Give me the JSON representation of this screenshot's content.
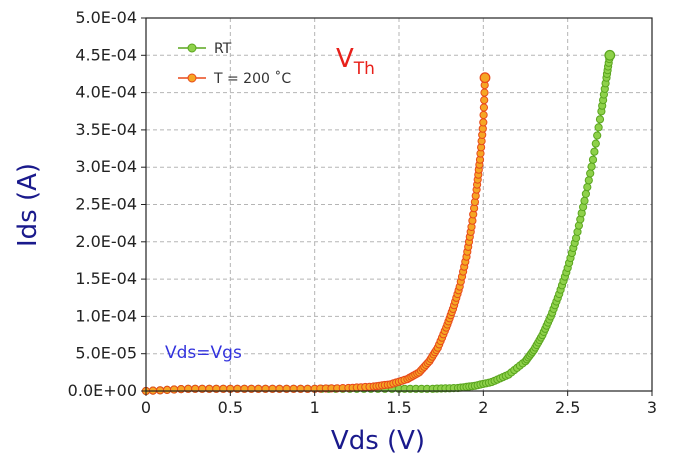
{
  "chart_data": {
    "type": "line",
    "title": "",
    "xlabel": "Vds (V)",
    "ylabel": "Ids (A)",
    "xlim": [
      0,
      3
    ],
    "ylim": [
      0,
      0.0005
    ],
    "grid": true,
    "x_ticks": [
      "0",
      "0.5",
      "1",
      "1.5",
      "2",
      "2.5",
      "3"
    ],
    "x_tick_values": [
      0,
      0.5,
      1,
      1.5,
      2,
      2.5,
      3
    ],
    "y_ticks": [
      "0.0E+00",
      "5.0E-05",
      "1.0E-04",
      "1.5E-04",
      "2.0E-04",
      "2.5E-04",
      "3.0E-04",
      "3.5E-04",
      "4.0E-04",
      "4.5E-04",
      "5.0E-04"
    ],
    "y_tick_values": [
      0,
      5e-05,
      0.0001,
      0.00015,
      0.0002,
      0.00025,
      0.0003,
      0.00035,
      0.0004,
      0.00045,
      0.0005
    ],
    "legend_position": "top-left",
    "series": [
      {
        "name": "RT",
        "color": "#5aa51e",
        "marker_fill": "#8ed14a",
        "x": [
          0.0,
          0.25,
          0.5,
          0.75,
          1.0,
          1.25,
          1.5,
          1.7,
          1.85,
          1.95,
          2.05,
          2.15,
          2.25,
          2.3,
          2.35,
          2.4,
          2.45,
          2.5,
          2.55,
          2.6,
          2.65,
          2.7,
          2.73,
          2.75
        ],
        "values": [
          0.0,
          3e-06,
          3e-06,
          3e-06,
          3e-06,
          3e-06,
          3e-06,
          3e-06,
          4e-06,
          7e-06,
          1.2e-05,
          2.2e-05,
          4e-05,
          5.5e-05,
          7.5e-05,
          0.0001,
          0.00013,
          0.000165,
          0.000205,
          0.000255,
          0.00031,
          0.000375,
          0.00042,
          0.00045
        ]
      },
      {
        "name": "T = 200 ˚C",
        "color": "#e8481a",
        "marker_fill": "#f5a623",
        "x": [
          0.0,
          0.25,
          0.5,
          0.75,
          1.0,
          1.2,
          1.35,
          1.45,
          1.55,
          1.62,
          1.68,
          1.73,
          1.78,
          1.82,
          1.86,
          1.9,
          1.93,
          1.96,
          1.98,
          2.0,
          2.01
        ],
        "values": [
          0.0,
          3e-06,
          3e-06,
          3e-06,
          3e-06,
          4e-06,
          6e-06,
          9e-06,
          1.6e-05,
          2.5e-05,
          4e-05,
          5.8e-05,
          8.5e-05,
          0.00011,
          0.00014,
          0.00018,
          0.00022,
          0.00027,
          0.00031,
          0.00036,
          0.00042
        ]
      }
    ],
    "annotations": {
      "vth_main": "V",
      "vth_sub": "Th",
      "condition": "Vds=Vgs"
    }
  }
}
